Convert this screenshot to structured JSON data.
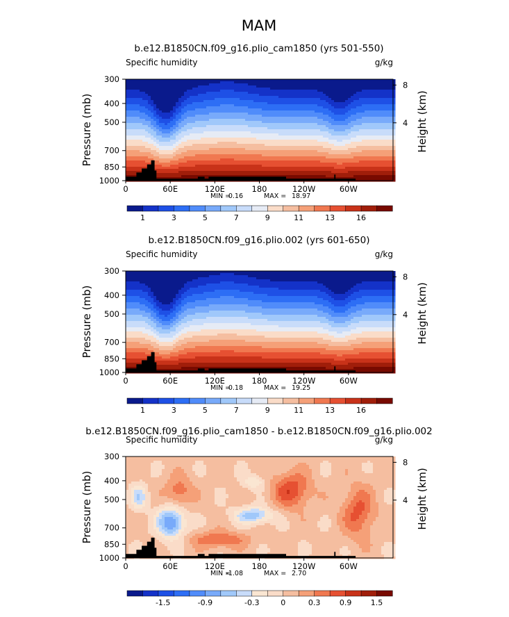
{
  "figure": {
    "season_title": "MAM"
  },
  "chart_data": [
    {
      "type": "heatmap",
      "title": "b.e12.B1850CN.f09_g16.plio_cam1850 (yrs 501-550)",
      "left_label": "Specific humidity",
      "units": "g/kg",
      "ylabel": "Pressure (mb)",
      "ylabel_right": "Height (km)",
      "pressure_ticks": [
        300,
        400,
        500,
        700,
        850,
        1000
      ],
      "height_ticks": [
        8,
        4
      ],
      "x_ticks": [
        "0",
        "60E",
        "120E",
        "180",
        "120W",
        "60W"
      ],
      "min_label": "MIN =",
      "min_value": "0.16",
      "max_label": "MAX =",
      "max_value": "18.97",
      "colorbar_levels": [
        "1",
        "3",
        "5",
        "7",
        "9",
        "11",
        "13",
        "16"
      ],
      "colorbar_colors": [
        "#0a1a8c",
        "#1432c8",
        "#1e50e6",
        "#2d6ef5",
        "#508cfa",
        "#78aafa",
        "#a0c8fa",
        "#c8dcfa",
        "#e6ebf5",
        "#fadcc8",
        "#f5bea0",
        "#f5a078",
        "#f07850",
        "#e65032",
        "#c83219",
        "#a01e0a",
        "#780a00"
      ],
      "field": "full"
    },
    {
      "type": "heatmap",
      "title": "b.e12.B1850CN.f09_g16.plio.002 (yrs 601-650)",
      "left_label": "Specific humidity",
      "units": "g/kg",
      "ylabel": "Pressure (mb)",
      "ylabel_right": "Height (km)",
      "pressure_ticks": [
        300,
        400,
        500,
        700,
        850,
        1000
      ],
      "height_ticks": [
        8,
        4
      ],
      "x_ticks": [
        "0",
        "60E",
        "120E",
        "180",
        "120W",
        "60W"
      ],
      "min_label": "MIN =",
      "min_value": "0.18",
      "max_label": "MAX =",
      "max_value": "19.25",
      "colorbar_levels": [
        "1",
        "3",
        "5",
        "7",
        "9",
        "11",
        "13",
        "16"
      ],
      "colorbar_colors": [
        "#0a1a8c",
        "#1432c8",
        "#1e50e6",
        "#2d6ef5",
        "#508cfa",
        "#78aafa",
        "#a0c8fa",
        "#c8dcfa",
        "#e6ebf5",
        "#fadcc8",
        "#f5bea0",
        "#f5a078",
        "#f07850",
        "#e65032",
        "#c83219",
        "#a01e0a",
        "#780a00"
      ],
      "field": "full"
    },
    {
      "type": "heatmap",
      "title": "b.e12.B1850CN.f09_g16.plio_cam1850 - b.e12.B1850CN.f09_g16.plio.002",
      "left_label": "Specific humidity",
      "units": "g/kg",
      "ylabel": "Pressure (mb)",
      "ylabel_right": "Height (km)",
      "pressure_ticks": [
        300,
        400,
        500,
        700,
        850,
        1000
      ],
      "height_ticks": [
        8,
        4
      ],
      "x_ticks": [
        "0",
        "60E",
        "120E",
        "180",
        "120W",
        "60W"
      ],
      "min_label": "MIN =",
      "min_value": "-1.08",
      "max_label": "MAX =",
      "max_value": "2.70",
      "colorbar_levels": [
        "-1.5",
        "-0.9",
        "-0.3",
        "0",
        "0.3",
        "0.9",
        "1.5"
      ],
      "colorbar_colors": [
        "#0a1a8c",
        "#1432c8",
        "#1e50e6",
        "#2d6ef5",
        "#508cfa",
        "#78aafa",
        "#a0c8fa",
        "#c8dcfa",
        "#fae6d2",
        "#fadcc8",
        "#f5bea0",
        "#f5a078",
        "#f07850",
        "#e65032",
        "#c83219",
        "#a01e0a",
        "#780a00"
      ],
      "field": "diff"
    }
  ]
}
